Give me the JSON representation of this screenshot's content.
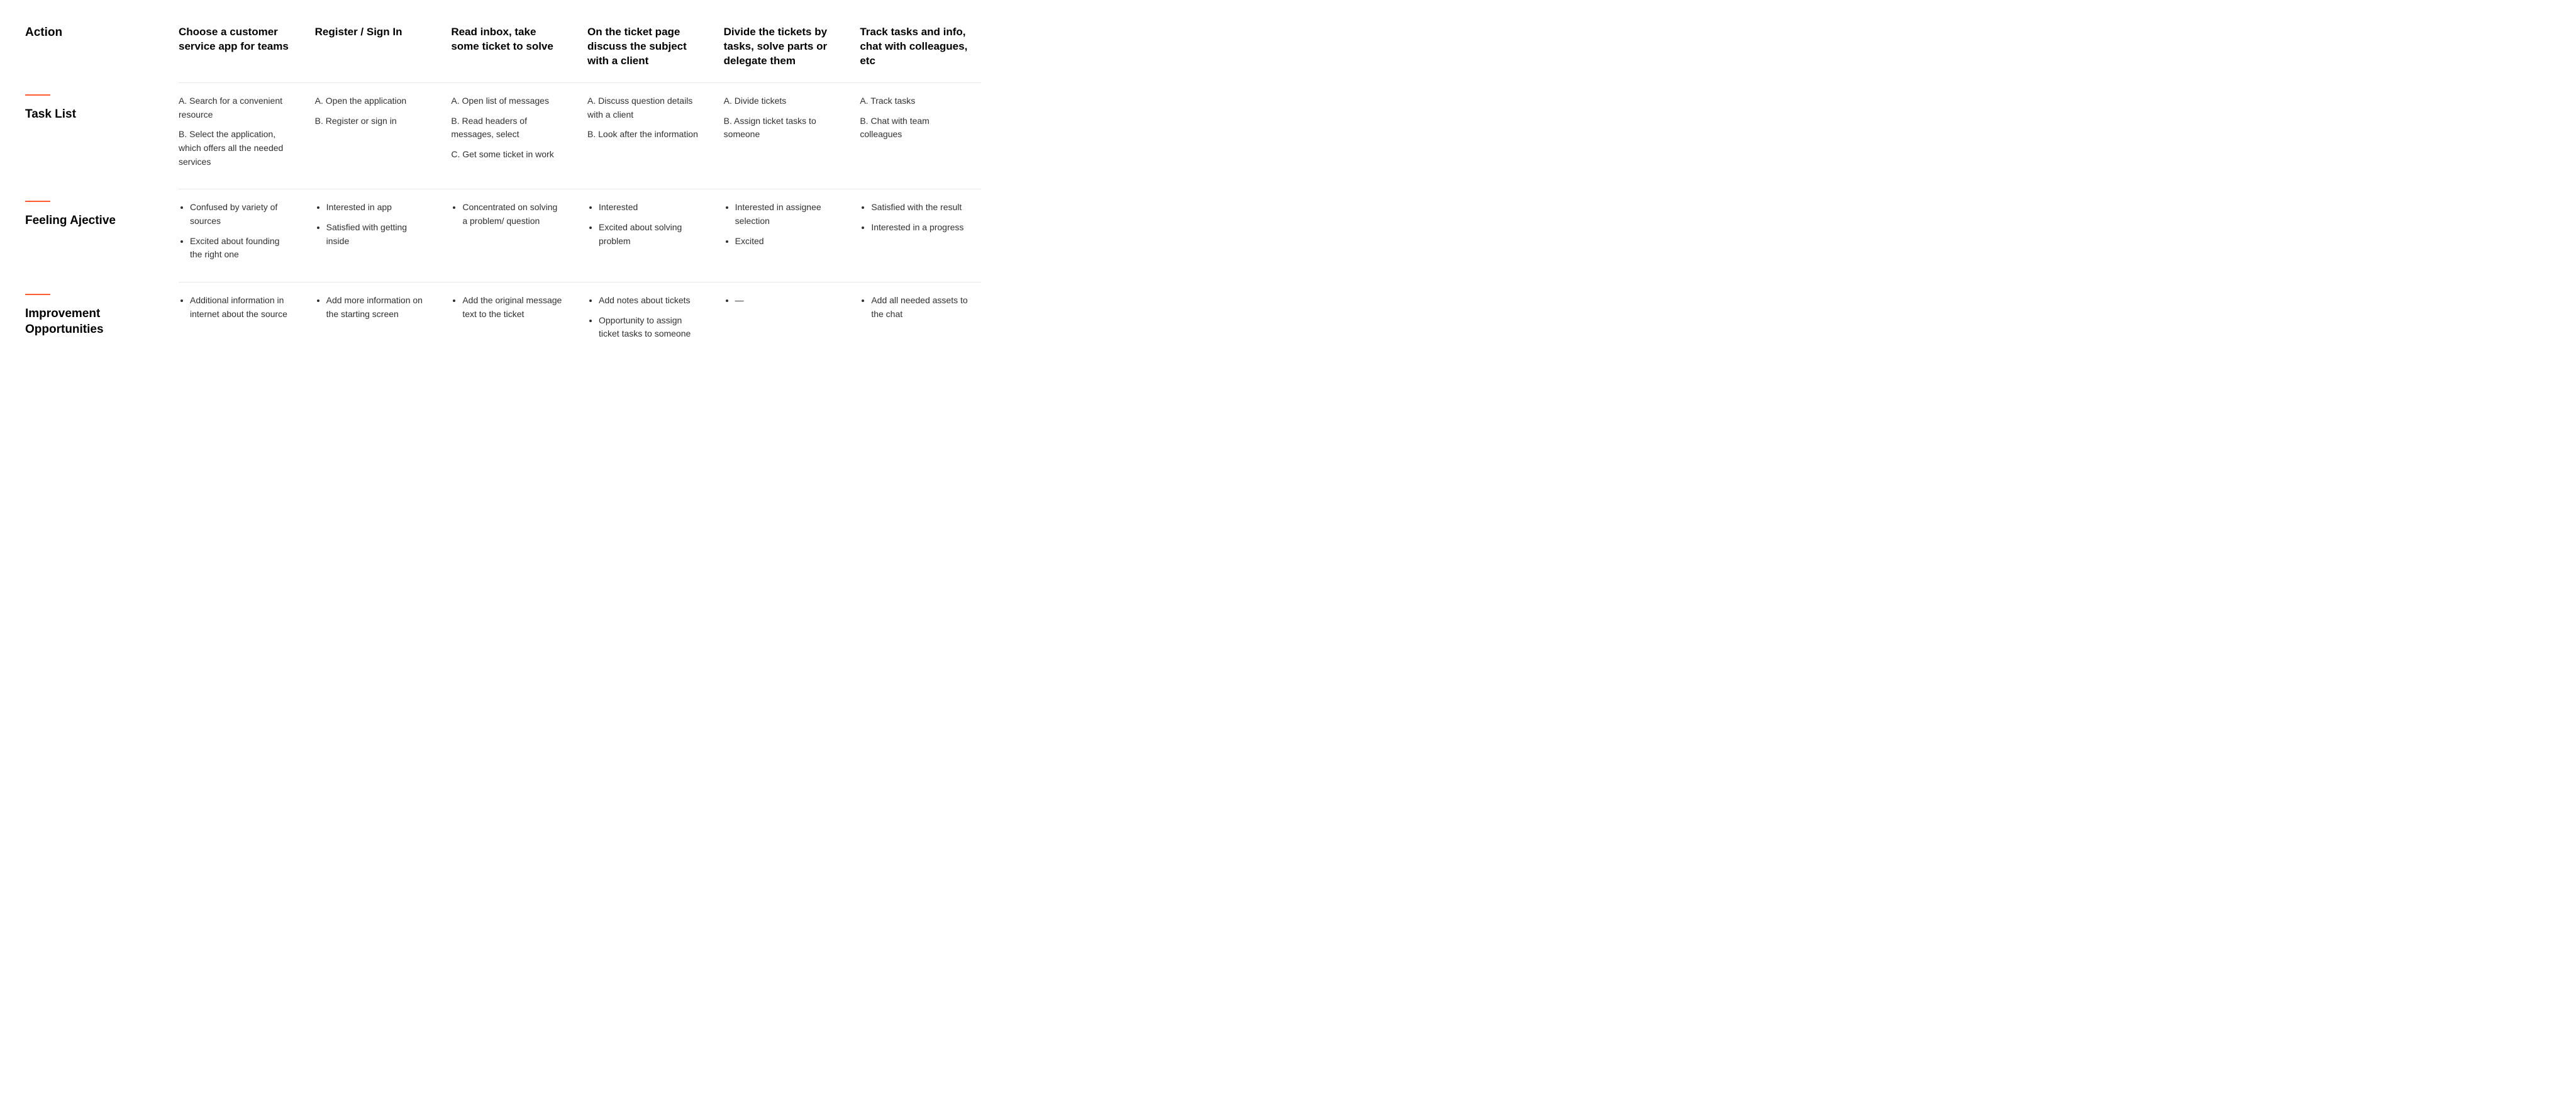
{
  "colors": {
    "accent": "#ff5a2d",
    "text": "#000000",
    "body_text": "#303030",
    "divider": "#e8e8e8",
    "background": "#ffffff"
  },
  "typography": {
    "row_header_fontsize": 19,
    "col_header_fontsize": 17,
    "cell_fontsize": 14,
    "row_header_weight": 700,
    "col_header_weight": 700
  },
  "row_labels": {
    "action": "Action",
    "task_list": "Task List",
    "feeling": "Feeling Ajective",
    "improve": "Improvement Opportunities"
  },
  "columns": [
    {
      "action": "Choose a customer service app for teams",
      "tasks": [
        "Search for a convenient resource",
        "Select the application, which offers all the needed services"
      ],
      "feelings": [
        "Confused by variety of sources",
        "Excited about founding the right one"
      ],
      "improve": [
        "Additional information in internet about the source"
      ]
    },
    {
      "action": "Register / Sign In",
      "tasks": [
        "Open the application",
        "Register or sign in"
      ],
      "feelings": [
        "Interested in app",
        "Satisfied with getting inside"
      ],
      "improve": [
        "Add more information on the starting screen"
      ]
    },
    {
      "action": "Read inbox, take some ticket to solve",
      "tasks": [
        "Open list of messages",
        "Read headers of messages, select",
        "Get some ticket in work"
      ],
      "feelings": [
        "Concentrated on solving a problem/ question"
      ],
      "improve": [
        "Add the original message text to the ticket"
      ]
    },
    {
      "action": "On the ticket page discuss the subject with a client",
      "tasks": [
        "Discuss question details with a client",
        "Look after the information"
      ],
      "feelings": [
        "Interested",
        "Excited about solving problem"
      ],
      "improve": [
        "Add notes about tickets",
        "Opportunity to assign ticket tasks to someone"
      ]
    },
    {
      "action": "Divide the tickets by tasks, solve parts or delegate them",
      "tasks": [
        "Divide tickets",
        "Assign ticket tasks to someone"
      ],
      "feelings": [
        "Interested in assignee selection",
        "Excited"
      ],
      "improve": [
        "—"
      ]
    },
    {
      "action": "Track tasks and info, chat with colleagues, etc",
      "tasks": [
        "Track tasks",
        "Chat with team colleagues"
      ],
      "feelings": [
        "Satisfied with the result",
        "Interested in a progress"
      ],
      "improve": [
        "Add all needed assets to the chat"
      ]
    }
  ]
}
